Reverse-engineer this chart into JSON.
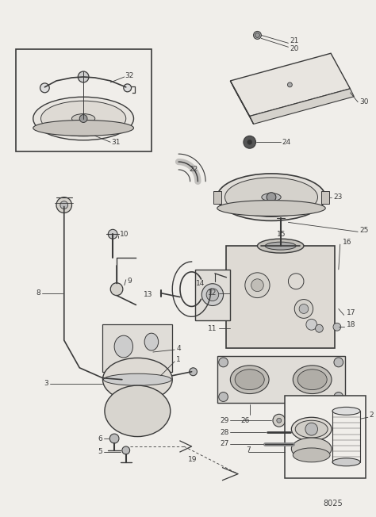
{
  "bg_color": "#f0eeea",
  "line_color": "#3a3a3a",
  "fig_width": 4.74,
  "fig_height": 6.52,
  "page_number": "8025"
}
